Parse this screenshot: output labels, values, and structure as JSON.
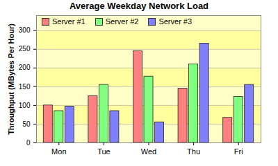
{
  "chart_data": {
    "type": "bar",
    "title": "Average Weekday Network Load",
    "y_label": "Throughput (MBytes Per Hour)",
    "categories": [
      "Mon",
      "Tue",
      "Wed",
      "Thu",
      "Fri"
    ],
    "series": [
      {
        "name": "Server #1",
        "color": "#ff8080",
        "values": [
          100,
          125,
          245,
          145,
          67
        ]
      },
      {
        "name": "Server #2",
        "color": "#80ff80",
        "values": [
          85,
          155,
          177,
          210,
          123
        ]
      },
      {
        "name": "Server #3",
        "color": "#8080ff",
        "values": [
          97,
          85,
          55,
          265,
          155
        ]
      }
    ],
    "ylim": [
      0,
      340
    ],
    "yticks": [
      0,
      50,
      100,
      150,
      200,
      250,
      300
    ],
    "grid": true,
    "legend": "top-left"
  }
}
